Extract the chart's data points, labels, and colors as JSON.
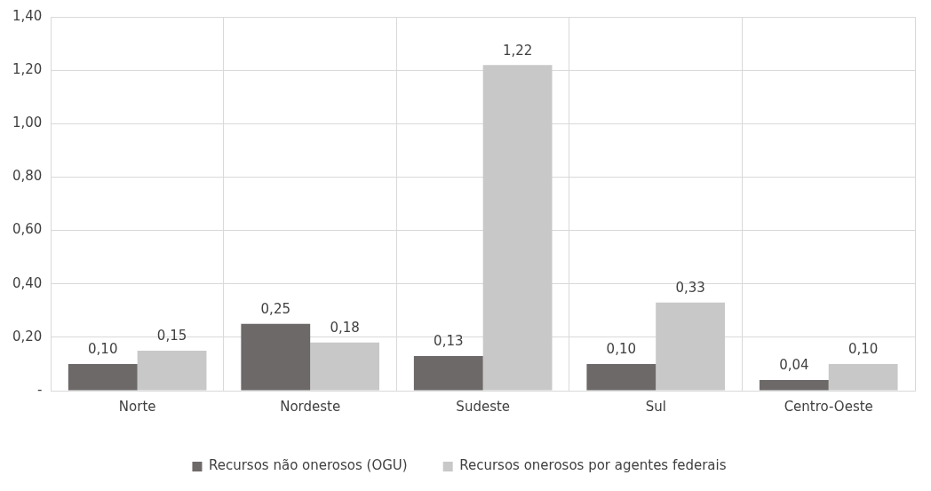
{
  "chart_data": {
    "type": "bar",
    "categories": [
      "Norte",
      "Nordeste",
      "Sudeste",
      "Sul",
      "Centro-Oeste"
    ],
    "series": [
      {
        "name": "Recursos não onerosos (OGU)",
        "color": "#6d6968",
        "values": [
          0.1,
          0.25,
          0.13,
          0.1,
          0.04
        ],
        "value_labels": [
          "0,10",
          "0,25",
          "0,13",
          "0,10",
          "0,04"
        ]
      },
      {
        "name": "Recursos onerosos por agentes federais",
        "color": "#c8c8c8",
        "values": [
          0.15,
          0.18,
          1.22,
          0.33,
          0.1
        ],
        "value_labels": [
          "0,15",
          "0,18",
          "1,22",
          "0,33",
          "0,10"
        ]
      }
    ],
    "ylim": [
      0,
      1.4
    ],
    "yticks": [
      {
        "value": 0,
        "label": "-"
      },
      {
        "value": 0.2,
        "label": "0,20"
      },
      {
        "value": 0.4,
        "label": "0,40"
      },
      {
        "value": 0.6,
        "label": "0,60"
      },
      {
        "value": 0.8,
        "label": "0,80"
      },
      {
        "value": 1.0,
        "label": "1,00"
      },
      {
        "value": 1.2,
        "label": "1,20"
      },
      {
        "value": 1.4,
        "label": "1,40"
      }
    ],
    "grid": true,
    "legend": "bottom"
  }
}
